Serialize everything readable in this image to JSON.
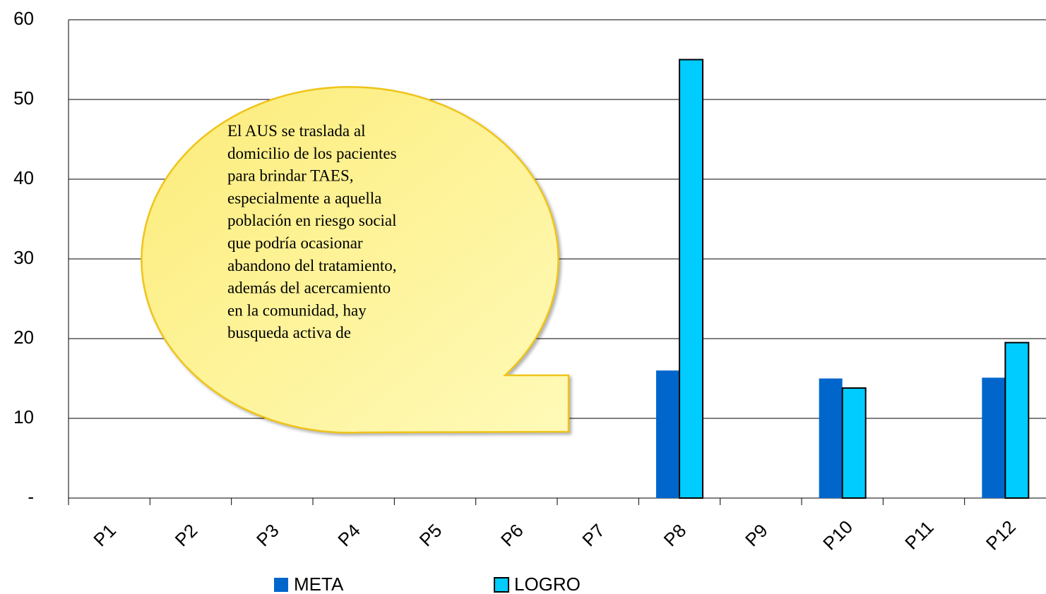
{
  "chart_data": {
    "type": "bar",
    "categories": [
      "P1",
      "P2",
      "P3",
      "P4",
      "P5",
      "P6",
      "P7",
      "P8",
      "P9",
      "P10",
      "P11",
      "P12"
    ],
    "series": [
      {
        "name": "META",
        "color": "#0066cc",
        "values": [
          null,
          null,
          null,
          null,
          null,
          null,
          null,
          16,
          null,
          15,
          null,
          15.1
        ]
      },
      {
        "name": "LOGRO",
        "color": "#00ccff",
        "values": [
          null,
          null,
          null,
          null,
          null,
          null,
          null,
          55,
          null,
          13.8,
          null,
          19.5
        ]
      }
    ],
    "ylim": [
      0,
      60
    ],
    "yticks": [
      {
        "value": 0,
        "label": "-"
      },
      10,
      20,
      30,
      40,
      50,
      60
    ],
    "grid": true,
    "legend": "bottom",
    "annotation": [
      "El AUS se traslada al",
      "domicilio de los pacientes",
      "para brindar TAES,",
      "especialmente a aquella",
      "población en riesgo social",
      "que podría ocasionar",
      "abandono del tratamiento,",
      "además del acercamiento",
      "en la comunidad, hay",
      "busqueda activa de"
    ]
  }
}
